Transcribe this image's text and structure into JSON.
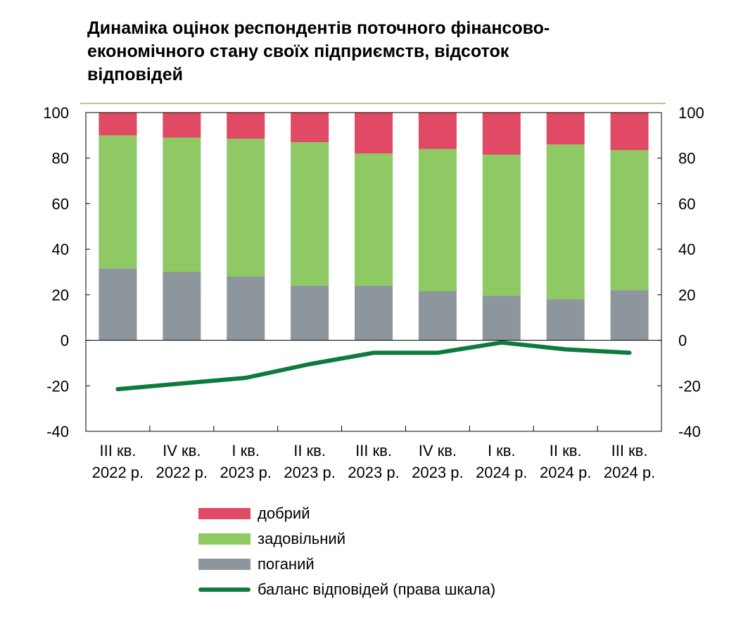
{
  "title": "Динаміка оцінок респондентів поточного  фінансово-\nекономічного стану своїх підприємств, відсоток\nвідповідей",
  "colors": {
    "good": "#e04a64",
    "satisfactory": "#8ec963",
    "bad": "#8c969c",
    "balance": "#0d7a3e",
    "title_rule": "#a8d08d"
  },
  "chart_data": {
    "type": "bar",
    "stacked": true,
    "categories": [
      [
        "III кв.",
        "2022 р."
      ],
      [
        "IV кв.",
        "2022 р."
      ],
      [
        "I кв.",
        "2023 р."
      ],
      [
        "II кв.",
        "2023 р."
      ],
      [
        "III кв.",
        "2023 р."
      ],
      [
        "IV кв.",
        "2023 р."
      ],
      [
        "I кв.",
        "2024 р."
      ],
      [
        "II кв.",
        "2024 р."
      ],
      [
        "III кв.",
        "2024 р."
      ]
    ],
    "series": [
      {
        "name": "поганий",
        "key": "bad",
        "values": [
          31.5,
          30,
          28,
          24,
          24,
          21.5,
          19.5,
          18,
          22
        ]
      },
      {
        "name": "задовільний",
        "key": "satisfactory",
        "values": [
          58.5,
          59,
          60.5,
          63,
          58,
          62.5,
          62,
          68,
          61.5
        ]
      },
      {
        "name": "добрий",
        "key": "good",
        "values": [
          10,
          11,
          11.5,
          13,
          18,
          16,
          18.5,
          14,
          16.5
        ]
      }
    ],
    "line_series": {
      "name": "баланс відповідей (права шкала)",
      "axis": "right",
      "values": [
        -21.5,
        -19,
        -16.5,
        -10.5,
        -5.5,
        -5.5,
        -1,
        -4,
        -5.5
      ]
    },
    "ylim": [
      -40,
      100
    ],
    "y_ticks": [
      100,
      80,
      60,
      40,
      20,
      0,
      -20,
      -40
    ],
    "y2lim": [
      -40,
      100
    ],
    "grid": false,
    "legend_position": "bottom"
  },
  "legend": [
    {
      "label": "добрий",
      "key": "good",
      "kind": "bar"
    },
    {
      "label": "задовільний",
      "key": "satisfactory",
      "kind": "bar"
    },
    {
      "label": "поганий",
      "key": "bad",
      "kind": "bar"
    },
    {
      "label": "баланс відповідей (права шкала)",
      "key": "balance",
      "kind": "line"
    }
  ]
}
